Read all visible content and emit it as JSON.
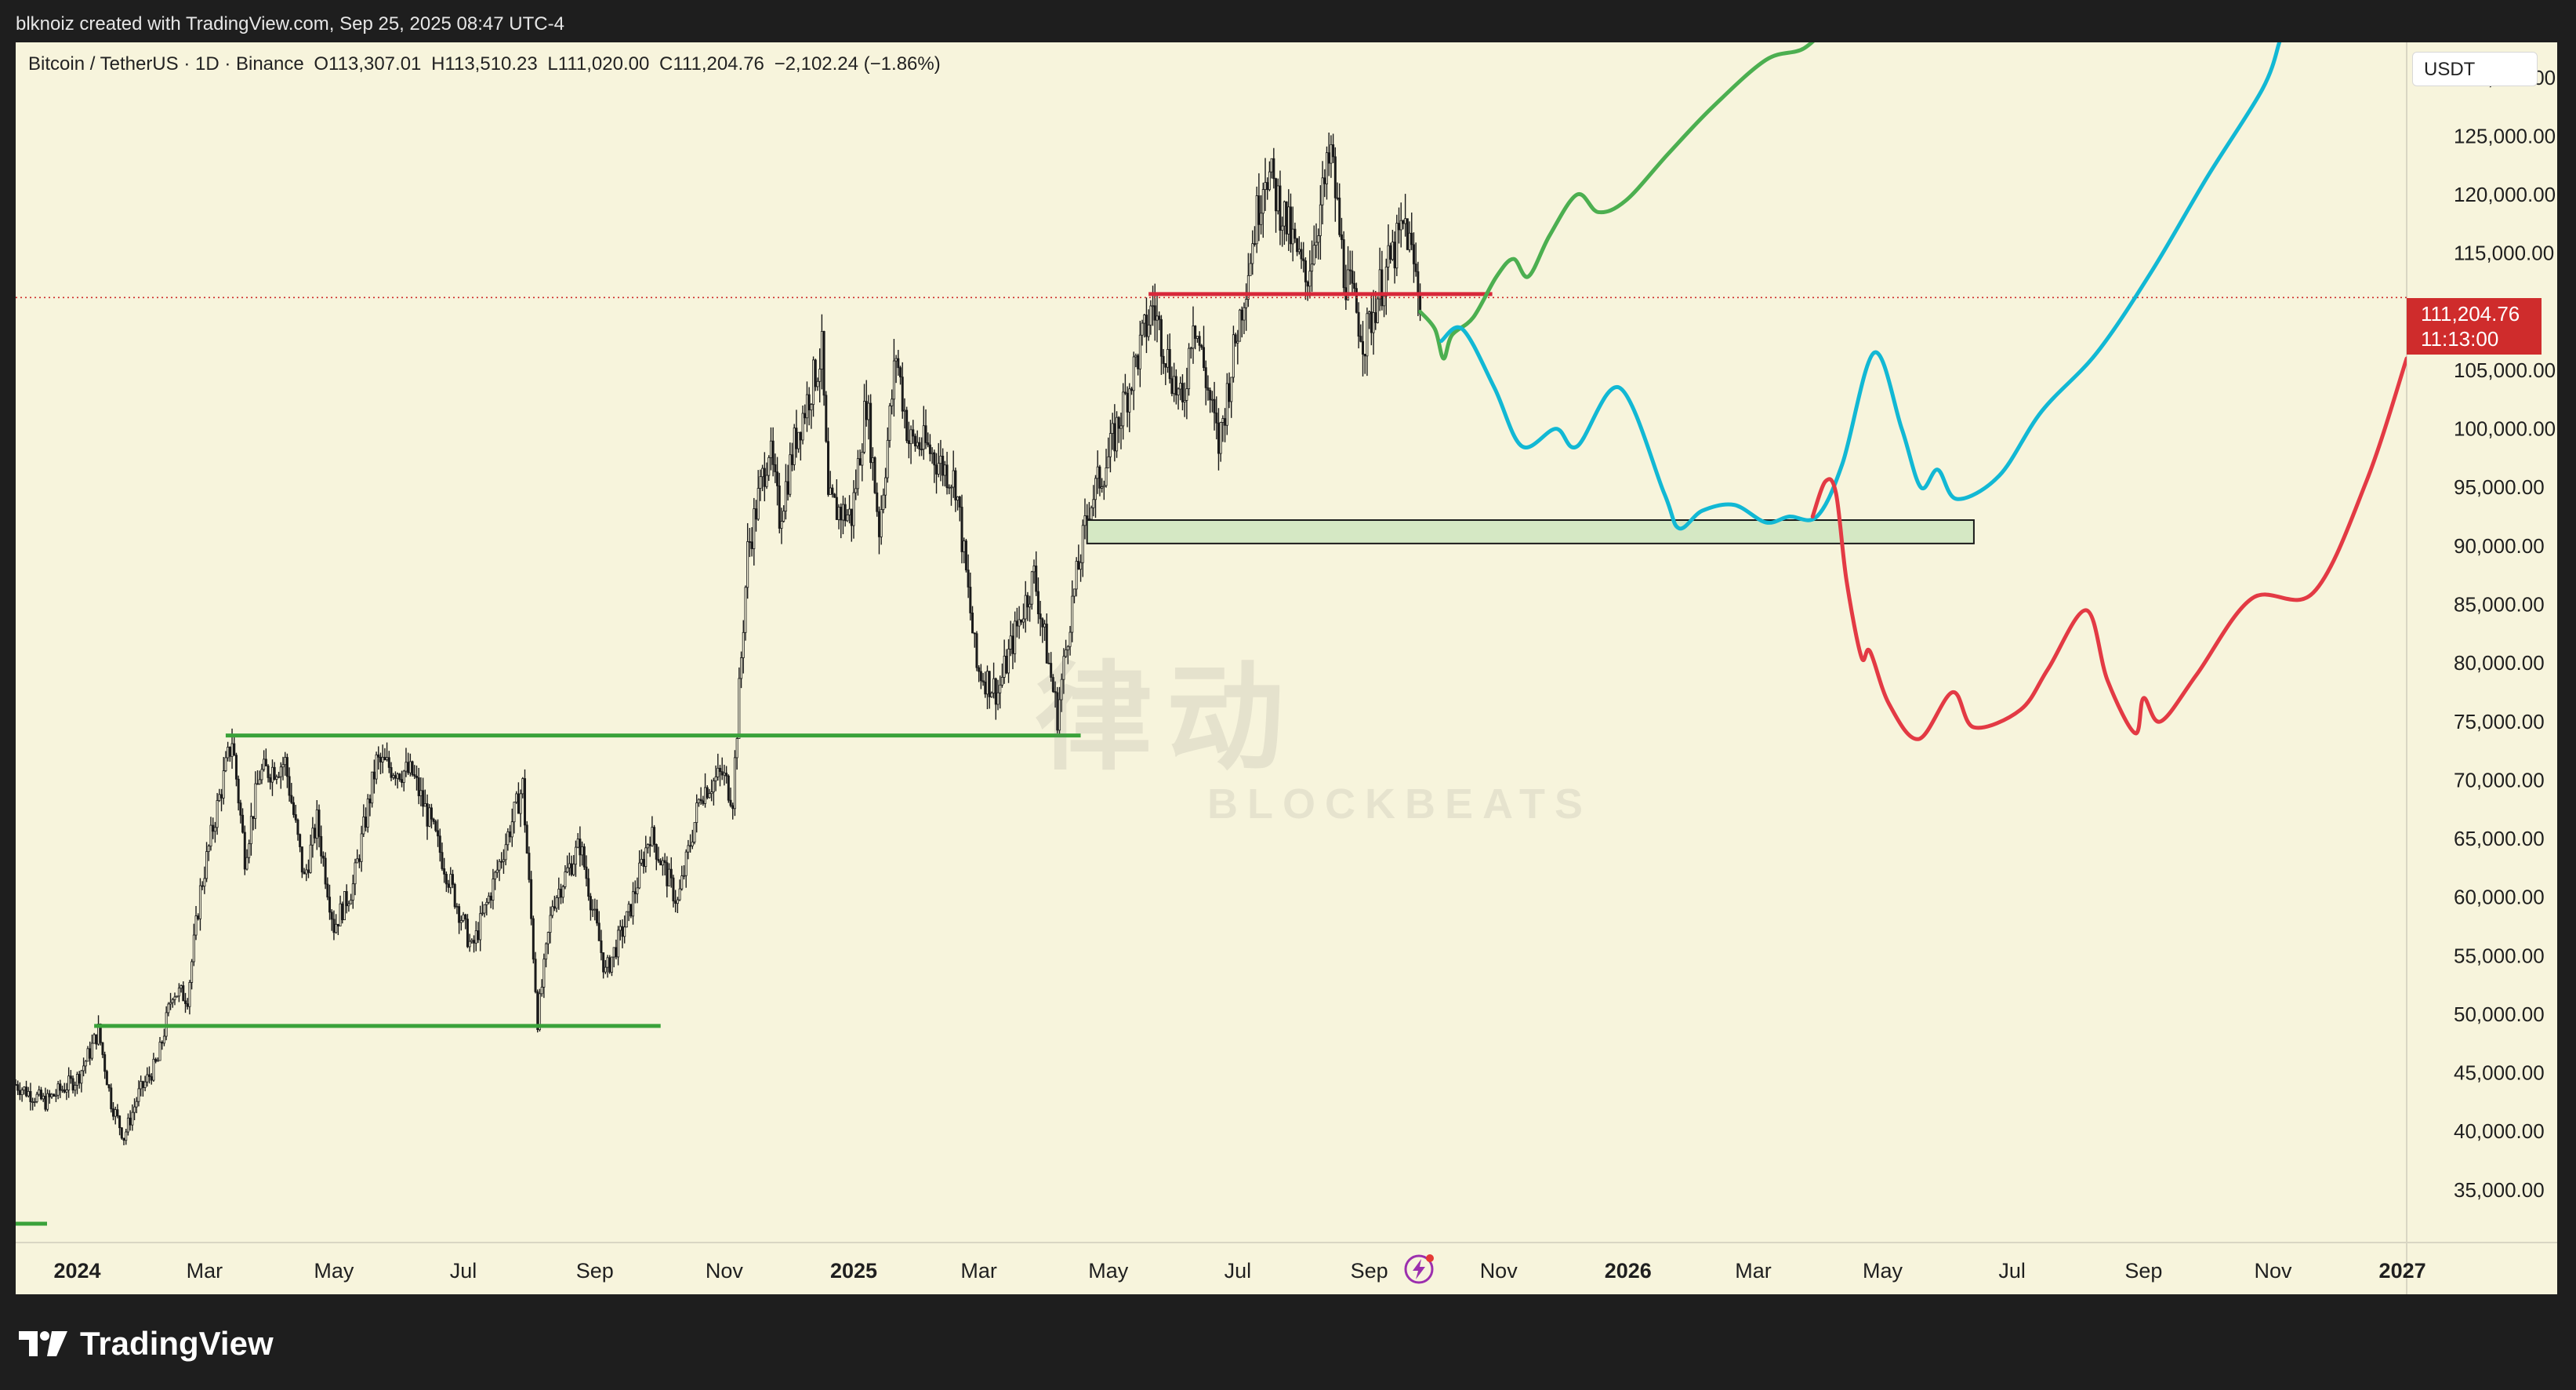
{
  "caption": "blknoiz created with TradingView.com, Sep 25, 2025 08:47 UTC-4",
  "header": {
    "symbol": "Bitcoin / TetherUS · 1D · Binance",
    "open": "O113,307.01",
    "high": "H113,510.23",
    "low": "L111,020.00",
    "close": "C111,204.76",
    "change": "−2,102.24 (−1.86%)"
  },
  "currency_label": "USDT",
  "price_tag": {
    "price": "111,204.76",
    "countdown": "11:13:00"
  },
  "watermark": {
    "main": "律动",
    "sub": "BLOCKBEATS"
  },
  "footer": {
    "brand": "TradingView"
  },
  "icons": {
    "tradingview_logo": "tradingview-logo-icon",
    "bolt": "lightning-bolt-icon"
  },
  "colors": {
    "background": "#f7f4dc",
    "candles": "#1a1a1a",
    "support_lines": "#3aa23a",
    "resistance_line": "#d8283a",
    "price_line": "#cf2c2c",
    "zone_fill": "#d5e8c4",
    "bull_path": "#4caf50",
    "base_path": "#12b8d4",
    "bear_path": "#e33a44"
  },
  "chart_data": {
    "type": "line",
    "title": "",
    "xlabel": "",
    "ylabel": "USDT",
    "ylim": [
      30500,
      133000
    ],
    "xlim": [
      "2023-12-03",
      "2027-01-03"
    ],
    "grid": false,
    "y_ticks": [
      "130,000.00",
      "125,000.00",
      "120,000.00",
      "115,000.00",
      "105,000.00",
      "100,000.00",
      "95,000.00",
      "90,000.00",
      "85,000.00",
      "80,000.00",
      "75,000.00",
      "70,000.00",
      "65,000.00",
      "60,000.00",
      "55,000.00",
      "50,000.00",
      "45,000.00",
      "40,000.00",
      "35,000.00"
    ],
    "x_ticks": [
      {
        "label": "2024",
        "date": "2024-01-01",
        "bold": true
      },
      {
        "label": "Mar",
        "date": "2024-03-01"
      },
      {
        "label": "May",
        "date": "2024-05-01"
      },
      {
        "label": "Jul",
        "date": "2024-07-01"
      },
      {
        "label": "Sep",
        "date": "2024-09-01"
      },
      {
        "label": "Nov",
        "date": "2024-11-01"
      },
      {
        "label": "2025",
        "date": "2025-01-01",
        "bold": true
      },
      {
        "label": "Mar",
        "date": "2025-03-01"
      },
      {
        "label": "May",
        "date": "2025-05-01"
      },
      {
        "label": "Jul",
        "date": "2025-07-01"
      },
      {
        "label": "Sep",
        "date": "2025-09-01"
      },
      {
        "label": "Nov",
        "date": "2025-11-01"
      },
      {
        "label": "2026",
        "date": "2026-01-01",
        "bold": true
      },
      {
        "label": "Mar",
        "date": "2026-03-01"
      },
      {
        "label": "May",
        "date": "2026-05-01"
      },
      {
        "label": "Jul",
        "date": "2026-07-01"
      },
      {
        "label": "Sep",
        "date": "2026-09-01"
      },
      {
        "label": "Nov",
        "date": "2026-11-01"
      },
      {
        "label": "2027",
        "date": "2027-01-01",
        "bold": true
      }
    ],
    "last_price": 111204.76,
    "price_series": {
      "name": "",
      "points": [
        [
          "2023-12-03",
          44000
        ],
        [
          "2023-12-10",
          43200
        ],
        [
          "2023-12-17",
          42500
        ],
        [
          "2023-12-24",
          43500
        ],
        [
          "2024-01-01",
          44500
        ],
        [
          "2024-01-07",
          46800
        ],
        [
          "2024-01-11",
          48600
        ],
        [
          "2024-01-17",
          42500
        ],
        [
          "2024-01-23",
          39500
        ],
        [
          "2024-01-30",
          43200
        ],
        [
          "2024-02-08",
          46000
        ],
        [
          "2024-02-15",
          52000
        ],
        [
          "2024-02-22",
          51500
        ],
        [
          "2024-02-28",
          60500
        ],
        [
          "2024-03-05",
          66000
        ],
        [
          "2024-03-14",
          73500
        ],
        [
          "2024-03-20",
          63500
        ],
        [
          "2024-03-27",
          70500
        ],
        [
          "2024-04-08",
          71500
        ],
        [
          "2024-04-17",
          61500
        ],
        [
          "2024-04-23",
          66500
        ],
        [
          "2024-05-01",
          57500
        ],
        [
          "2024-05-10",
          61000
        ],
        [
          "2024-05-21",
          71500
        ],
        [
          "2024-06-07",
          70500
        ],
        [
          "2024-06-18",
          65000
        ],
        [
          "2024-07-05",
          55500
        ],
        [
          "2024-07-14",
          60500
        ],
        [
          "2024-07-29",
          69500
        ],
        [
          "2024-08-05",
          49500
        ],
        [
          "2024-08-12",
          59500
        ],
        [
          "2024-08-25",
          64500
        ],
        [
          "2024-09-06",
          53500
        ],
        [
          "2024-09-17",
          58500
        ],
        [
          "2024-09-27",
          65500
        ],
        [
          "2024-10-10",
          59500
        ],
        [
          "2024-10-21",
          69000
        ],
        [
          "2024-10-31",
          70500
        ],
        [
          "2024-11-05",
          68500
        ],
        [
          "2024-11-12",
          89500
        ],
        [
          "2024-11-22",
          98500
        ],
        [
          "2024-11-27",
          92500
        ],
        [
          "2024-12-05",
          99500
        ],
        [
          "2024-12-17",
          106500
        ],
        [
          "2024-12-20",
          93500
        ],
        [
          "2024-12-31",
          92500
        ],
        [
          "2025-01-07",
          102500
        ],
        [
          "2025-01-13",
          91500
        ],
        [
          "2025-01-21",
          106500
        ],
        [
          "2025-01-27",
          99000
        ],
        [
          "2025-02-04",
          98500
        ],
        [
          "2025-02-18",
          95500
        ],
        [
          "2025-02-28",
          79500
        ],
        [
          "2025-03-10",
          77500
        ],
        [
          "2025-03-18",
          82500
        ],
        [
          "2025-03-27",
          87500
        ],
        [
          "2025-04-07",
          75500
        ],
        [
          "2025-04-13",
          84000
        ],
        [
          "2025-04-22",
          93500
        ],
        [
          "2025-05-01",
          97500
        ],
        [
          "2025-05-12",
          104500
        ],
        [
          "2025-05-22",
          110500
        ],
        [
          "2025-06-05",
          101500
        ],
        [
          "2025-06-10",
          110000
        ],
        [
          "2025-06-22",
          98500
        ],
        [
          "2025-06-30",
          107500
        ],
        [
          "2025-07-14",
          122500
        ],
        [
          "2025-07-24",
          117500
        ],
        [
          "2025-08-02",
          112500
        ],
        [
          "2025-08-14",
          123500
        ],
        [
          "2025-08-20",
          113500
        ],
        [
          "2025-08-30",
          107500
        ],
        [
          "2025-09-05",
          111500
        ],
        [
          "2025-09-18",
          117500
        ],
        [
          "2025-09-25",
          111204.76
        ]
      ]
    },
    "levels": [
      {
        "name": "support-lower",
        "price": 49000,
        "from": "2024-01-09",
        "to": "2024-10-02"
      },
      {
        "name": "support-upper",
        "price": 73800,
        "from": "2024-03-11",
        "to": "2025-04-18"
      },
      {
        "name": "resistance",
        "price": 111500,
        "from": "2025-05-20",
        "to": "2025-10-29"
      }
    ],
    "zone": {
      "from": "2025-04-21",
      "to": "2026-06-13",
      "low": 90200,
      "high": 92200
    },
    "projections": [
      {
        "name": "",
        "color": "bull",
        "points": [
          [
            "2025-09-25",
            110000
          ],
          [
            "2025-10-02",
            108500
          ],
          [
            "2025-10-06",
            106000
          ],
          [
            "2025-10-10",
            108000
          ],
          [
            "2025-10-20",
            109500
          ],
          [
            "2025-10-31",
            113000
          ],
          [
            "2025-11-08",
            114500
          ],
          [
            "2025-11-15",
            113000
          ],
          [
            "2025-11-25",
            116500
          ],
          [
            "2025-12-08",
            120000
          ],
          [
            "2025-12-18",
            118500
          ],
          [
            "2025-12-31",
            119500
          ],
          [
            "2026-01-20",
            123500
          ],
          [
            "2026-02-10",
            127500
          ],
          [
            "2026-03-07",
            131500
          ],
          [
            "2026-03-25",
            132500
          ],
          [
            "2026-04-08",
            135000
          ]
        ]
      },
      {
        "name": "",
        "color": "base",
        "points": [
          [
            "2025-10-05",
            107500
          ],
          [
            "2025-10-15",
            108500
          ],
          [
            "2025-10-30",
            103500
          ],
          [
            "2025-11-12",
            98500
          ],
          [
            "2025-11-28",
            100000
          ],
          [
            "2025-12-08",
            98500
          ],
          [
            "2025-12-28",
            103500
          ],
          [
            "2026-01-18",
            94500
          ],
          [
            "2026-01-25",
            91500
          ],
          [
            "2026-02-05",
            93000
          ],
          [
            "2026-02-20",
            93500
          ],
          [
            "2026-03-07",
            92000
          ],
          [
            "2026-03-18",
            92500
          ],
          [
            "2026-03-31",
            92500
          ],
          [
            "2026-04-12",
            97000
          ],
          [
            "2026-04-27",
            106500
          ],
          [
            "2026-05-10",
            100000
          ],
          [
            "2026-05-19",
            95000
          ],
          [
            "2026-05-27",
            96500
          ],
          [
            "2026-06-05",
            94000
          ],
          [
            "2026-06-25",
            96000
          ],
          [
            "2026-07-15",
            101500
          ],
          [
            "2026-08-10",
            106500
          ],
          [
            "2026-09-05",
            113500
          ],
          [
            "2026-10-01",
            121500
          ],
          [
            "2026-10-27",
            129000
          ],
          [
            "2026-11-04",
            133000
          ]
        ]
      },
      {
        "name": "",
        "color": "bear",
        "points": [
          [
            "2026-03-29",
            92500
          ],
          [
            "2026-04-04",
            95500
          ],
          [
            "2026-04-09",
            94500
          ],
          [
            "2026-04-14",
            87000
          ],
          [
            "2026-04-21",
            80500
          ],
          [
            "2026-04-25",
            81000
          ],
          [
            "2026-05-04",
            76500
          ],
          [
            "2026-05-18",
            73500
          ],
          [
            "2026-06-03",
            77500
          ],
          [
            "2026-06-13",
            74500
          ],
          [
            "2026-07-05",
            76000
          ],
          [
            "2026-07-18",
            79500
          ],
          [
            "2026-08-05",
            84500
          ],
          [
            "2026-08-15",
            78500
          ],
          [
            "2026-08-28",
            74000
          ],
          [
            "2026-09-01",
            77000
          ],
          [
            "2026-09-09",
            75000
          ],
          [
            "2026-09-26",
            79000
          ],
          [
            "2026-10-22",
            85500
          ],
          [
            "2026-11-20",
            86000
          ],
          [
            "2026-12-15",
            95500
          ],
          [
            "2027-01-03",
            106000
          ]
        ]
      }
    ]
  }
}
